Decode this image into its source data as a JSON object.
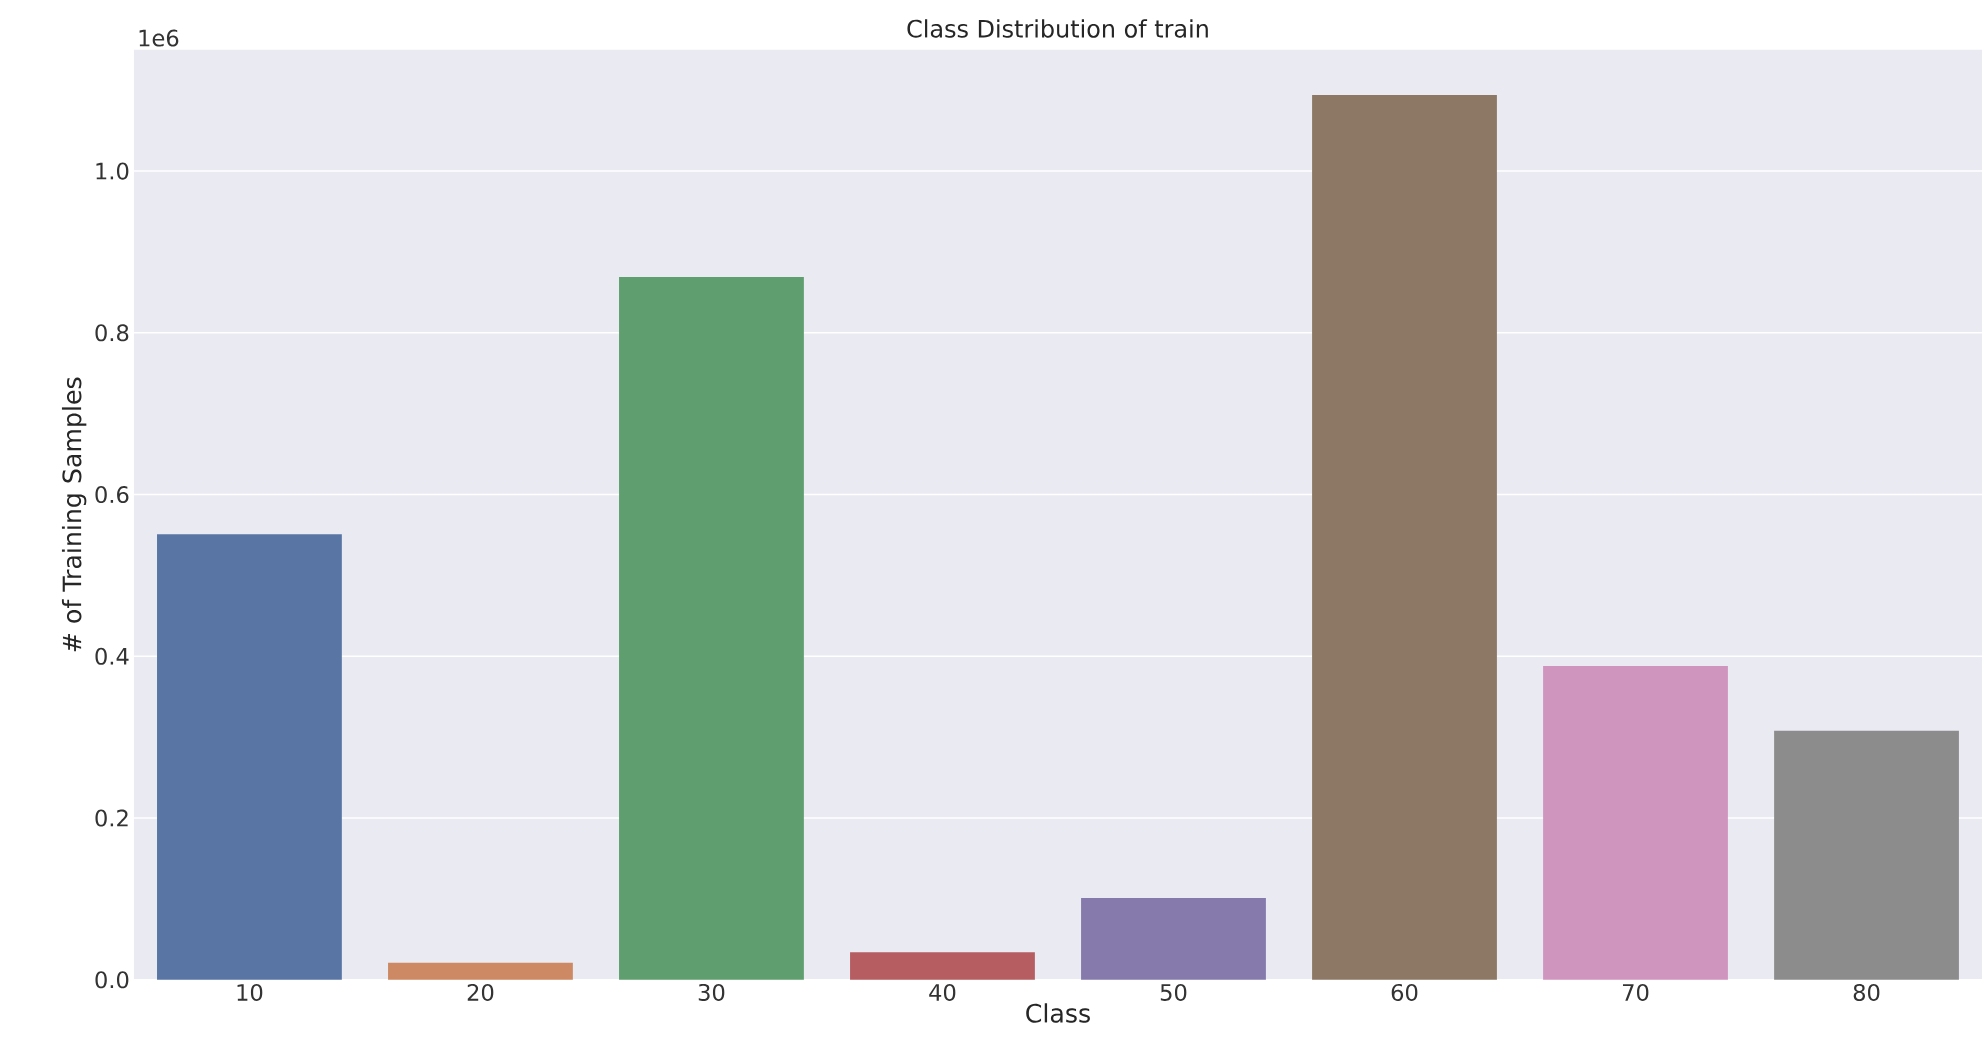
{
  "chart_data": {
    "type": "bar",
    "title": "Class Distribution of train",
    "xlabel": "Class",
    "ylabel": "# of Training Samples",
    "categories": [
      "10",
      "20",
      "30",
      "40",
      "50",
      "60",
      "70",
      "80"
    ],
    "values": [
      0.551,
      0.021,
      0.869,
      0.034,
      0.101,
      1.094,
      0.388,
      0.308
    ],
    "colors": [
      "#5975a4",
      "#cc8963",
      "#5f9e6e",
      "#b55d60",
      "#857aab",
      "#8d7866",
      "#d095bf",
      "#8c8c8c"
    ],
    "ylim": [
      0,
      1.15
    ],
    "yticks": [
      {
        "value": 0,
        "label": "0.0"
      },
      0.2,
      0.4,
      0.6,
      0.8,
      {
        "value": 1,
        "label": "1.0"
      }
    ],
    "annotations": [
      "1e6"
    ],
    "grid": "y"
  }
}
